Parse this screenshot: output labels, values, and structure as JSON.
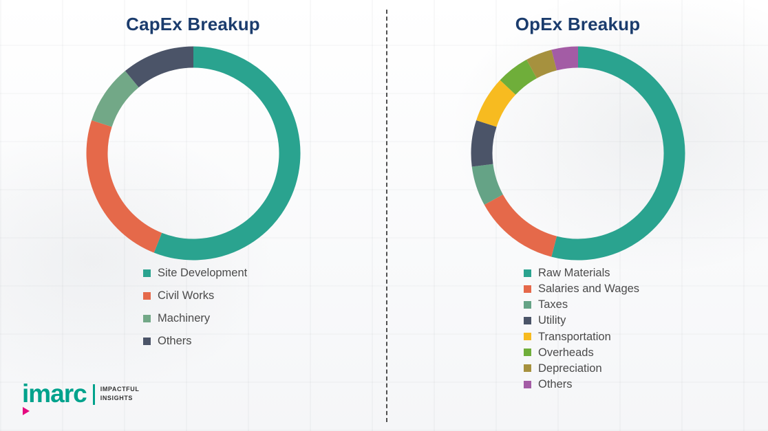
{
  "chart_data": [
    {
      "type": "pie",
      "style": "donut",
      "title": "CapEx Breakup",
      "legend_position": "bottom",
      "values_are_estimated_percent": true,
      "segments": [
        {
          "label": "Site Development",
          "value": 56,
          "color": "#2AA38F"
        },
        {
          "label": "Civil Works",
          "value": 24,
          "color": "#E5694A"
        },
        {
          "label": "Machinery",
          "value": 9,
          "color": "#72A887"
        },
        {
          "label": "Others",
          "value": 11,
          "color": "#4B5468"
        }
      ]
    },
    {
      "type": "pie",
      "style": "donut",
      "title": "OpEx Breakup",
      "legend_position": "bottom",
      "values_are_estimated_percent": true,
      "segments": [
        {
          "label": "Raw Materials",
          "value": 54,
          "color": "#2AA38F"
        },
        {
          "label": "Salaries and Wages",
          "value": 13,
          "color": "#E5694A"
        },
        {
          "label": "Taxes",
          "value": 6,
          "color": "#65A386"
        },
        {
          "label": "Utility",
          "value": 7,
          "color": "#4B5468"
        },
        {
          "label": "Transportation",
          "value": 7,
          "color": "#F7BB20"
        },
        {
          "label": "Overheads",
          "value": 5,
          "color": "#6FAE3A"
        },
        {
          "label": "Depreciation",
          "value": 4,
          "color": "#A6913E"
        },
        {
          "label": "Others",
          "value": 4,
          "color": "#A35CA5"
        }
      ]
    }
  ],
  "titles_color": "#1B3C6D",
  "logo": {
    "wordmark": "imarc",
    "tagline_line1": "IMPACTFUL",
    "tagline_line2": "INSIGHTS",
    "teal": "#00A28C",
    "magenta": "#E5097F"
  }
}
